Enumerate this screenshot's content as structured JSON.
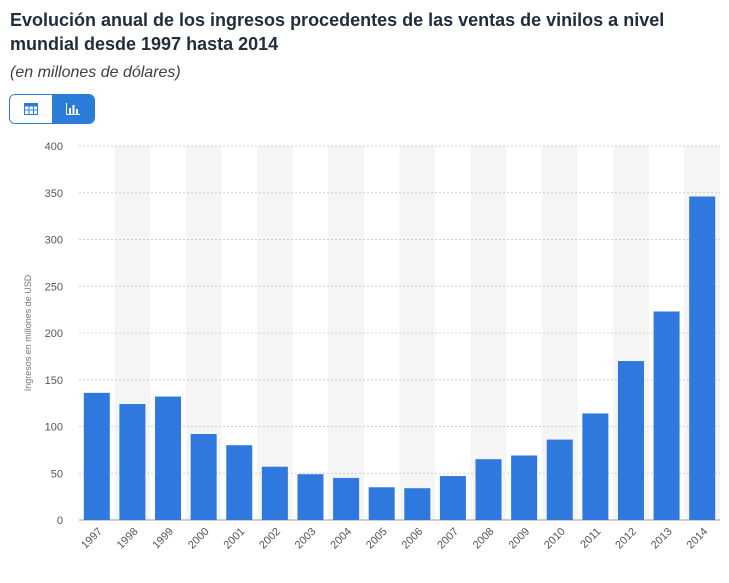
{
  "page": {
    "title": "Evolución anual de los ingresos procedentes de las ventas de vinilos a nivel mundial desde 1997 hasta 2014",
    "subtitle": "(en millones de dólares)"
  },
  "view_toggle": {
    "table_icon": "table-icon",
    "chart_icon": "bar-chart-icon",
    "active": "chart"
  },
  "colors": {
    "bar": "#2f78dd",
    "accent": "#2b7cd9",
    "band": "#f5f5f5",
    "grid": "#d0d0d0",
    "axis_text": "#555555"
  },
  "chart_data": {
    "type": "bar",
    "title": "Evolución anual de los ingresos procedentes de las ventas de vinilos a nivel mundial desde 1997 hasta 2014",
    "subtitle": "(en millones de dólares)",
    "xlabel": "",
    "ylabel": "Ingresos en millones de USD",
    "ylim": [
      0,
      400
    ],
    "yticks": [
      0,
      50,
      100,
      150,
      200,
      250,
      300,
      350,
      400
    ],
    "grid": true,
    "categories": [
      "1997",
      "1998",
      "1999",
      "2000",
      "2001",
      "2002",
      "2003",
      "2004",
      "2005",
      "2006",
      "2007",
      "2008",
      "2009",
      "2010",
      "2011",
      "2012",
      "2013",
      "2014"
    ],
    "series": [
      {
        "name": "Ingresos en millones de USD",
        "values": [
          136,
          124,
          132,
          92,
          80,
          57,
          49,
          45,
          35,
          34,
          47,
          65,
          69,
          86,
          114,
          170,
          223,
          346
        ]
      }
    ]
  }
}
